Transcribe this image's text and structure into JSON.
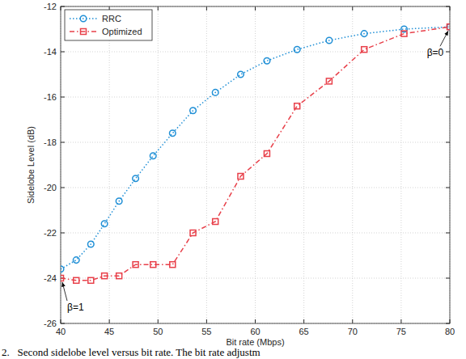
{
  "chart_data": {
    "type": "line",
    "x_label": "Bit rate (Mbps)",
    "y_label": "Sidelobe Level (dB)",
    "caption": "2.   Second sidelobe level versus bit rate. The bit rate adjustm",
    "x": [
      40,
      41.6,
      43.1,
      44.5,
      46,
      47.7,
      49.5,
      51.5,
      53.6,
      55.9,
      58.5,
      61.2,
      64.3,
      67.6,
      71.2,
      75.3,
      80
    ],
    "series": [
      {
        "name": "RRC",
        "color": "#1f8fd6",
        "marker": "circle",
        "line_style": "dotted",
        "values": [
          -23.6,
          -23.2,
          -22.5,
          -21.6,
          -20.6,
          -19.6,
          -18.6,
          -17.6,
          -16.6,
          -15.8,
          -15.0,
          -14.4,
          -13.9,
          -13.5,
          -13.2,
          -13.0,
          -12.9
        ]
      },
      {
        "name": "Optimized",
        "color": "#e8404a",
        "marker": "square",
        "line_style": "dashdot",
        "values": [
          -24.0,
          -24.1,
          -24.1,
          -23.9,
          -23.9,
          -23.4,
          -23.4,
          -23.4,
          -22.0,
          -21.5,
          -19.5,
          -18.5,
          -16.4,
          -15.3,
          -13.9,
          -13.2,
          -12.9
        ]
      }
    ],
    "annotations": [
      {
        "text": "β=0",
        "x": 80,
        "y": -12.9
      },
      {
        "text": "β=1",
        "x": 40,
        "y": -24.0
      }
    ],
    "xlim": [
      40,
      80
    ],
    "xticks": [
      40,
      45,
      50,
      55,
      60,
      65,
      70,
      75,
      80
    ],
    "ylim": [
      -26,
      -12
    ],
    "yticks": [
      -26,
      -24,
      -22,
      -20,
      -18,
      -16,
      -14,
      -12
    ],
    "grid": true,
    "legend": "upper left"
  }
}
